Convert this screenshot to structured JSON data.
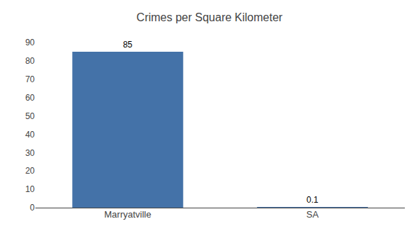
{
  "chart_data": {
    "type": "bar",
    "title": "Crimes per Square Kilometer",
    "categories": [
      "Marryatville",
      "SA"
    ],
    "values": [
      85,
      0.1
    ],
    "color": "#4472a8",
    "ylim": [
      0,
      90
    ],
    "yticks": [
      0,
      10,
      20,
      30,
      40,
      50,
      60,
      70,
      80,
      90
    ],
    "grid": false,
    "data_labels": true
  }
}
